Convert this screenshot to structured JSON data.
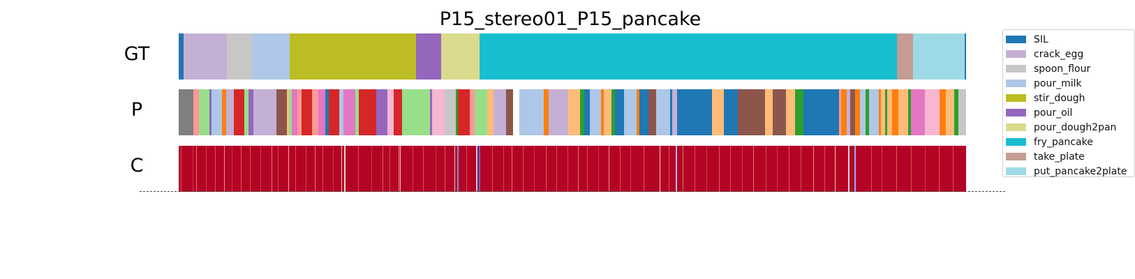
{
  "chart_data": {
    "type": "segmentation-timeline",
    "title": "P15_stereo01_P15_pancake",
    "rows": [
      "GT",
      "P",
      "C"
    ],
    "total_frames": 1000,
    "classes": [
      {
        "name": "SIL",
        "color": "#1f77b4"
      },
      {
        "name": "crack_egg",
        "color": "#c5b0d5"
      },
      {
        "name": "spoon_flour",
        "color": "#c7c7c7"
      },
      {
        "name": "pour_milk",
        "color": "#aec7e8"
      },
      {
        "name": "stir_dough",
        "color": "#bcbd22"
      },
      {
        "name": "pour_oil",
        "color": "#9467bd"
      },
      {
        "name": "pour_dough2pan",
        "color": "#dbdb8d"
      },
      {
        "name": "fry_pancake",
        "color": "#17becf"
      },
      {
        "name": "take_plate",
        "color": "#c49c94"
      },
      {
        "name": "put_pancake2plate",
        "color": "#9edae5"
      }
    ],
    "extra_colors": {
      "gray": "#7f7f7f",
      "lightgreen": "#98df8a",
      "salmon": "#ff9896",
      "orange": "#ff7f0e",
      "lightorange": "#ffbb78",
      "red": "#d62728",
      "pink": "#e377c2",
      "lightpink": "#f7b6d2",
      "brown": "#8c564b",
      "green": "#2ca02c"
    },
    "ground_truth": [
      {
        "start": 0,
        "end": 6,
        "color": "#1f77b4"
      },
      {
        "start": 6,
        "end": 61,
        "color": "#c5b0d5"
      },
      {
        "start": 61,
        "end": 93,
        "color": "#c7c7c7"
      },
      {
        "start": 93,
        "end": 141,
        "color": "#aec7e8"
      },
      {
        "start": 141,
        "end": 301,
        "color": "#bcbd22"
      },
      {
        "start": 301,
        "end": 333,
        "color": "#9467bd"
      },
      {
        "start": 333,
        "end": 382,
        "color": "#dbdb8d"
      },
      {
        "start": 382,
        "end": 912,
        "color": "#17becf"
      },
      {
        "start": 912,
        "end": 933,
        "color": "#c49c94"
      },
      {
        "start": 933,
        "end": 998,
        "color": "#9edae5"
      },
      {
        "start": 998,
        "end": 1000,
        "color": "#1f77b4"
      }
    ],
    "prediction": [
      {
        "start": 0,
        "end": 19,
        "color": "#7f7f7f"
      },
      {
        "start": 19,
        "end": 26,
        "color": "#ff9896"
      },
      {
        "start": 26,
        "end": 39,
        "color": "#98df8a"
      },
      {
        "start": 39,
        "end": 42,
        "color": "#9467bd"
      },
      {
        "start": 42,
        "end": 55,
        "color": "#aec7e8"
      },
      {
        "start": 55,
        "end": 60,
        "color": "#ff7f0e"
      },
      {
        "start": 60,
        "end": 70,
        "color": "#c5b0d5"
      },
      {
        "start": 70,
        "end": 83,
        "color": "#d62728"
      },
      {
        "start": 83,
        "end": 89,
        "color": "#98df8a"
      },
      {
        "start": 89,
        "end": 95,
        "color": "#9467bd"
      },
      {
        "start": 95,
        "end": 124,
        "color": "#c5b0d5"
      },
      {
        "start": 124,
        "end": 137,
        "color": "#8c564b"
      },
      {
        "start": 137,
        "end": 140,
        "color": "#ffbb78"
      },
      {
        "start": 140,
        "end": 144,
        "color": "#98df8a"
      },
      {
        "start": 144,
        "end": 151,
        "color": "#e377c2"
      },
      {
        "start": 151,
        "end": 156,
        "color": "#ff9896"
      },
      {
        "start": 156,
        "end": 169,
        "color": "#d62728"
      },
      {
        "start": 169,
        "end": 177,
        "color": "#ff9896"
      },
      {
        "start": 177,
        "end": 186,
        "color": "#e377c2"
      },
      {
        "start": 186,
        "end": 191,
        "color": "#1f77b4"
      },
      {
        "start": 191,
        "end": 204,
        "color": "#d62728"
      },
      {
        "start": 204,
        "end": 209,
        "color": "#aec7e8"
      },
      {
        "start": 209,
        "end": 224,
        "color": "#e377c2"
      },
      {
        "start": 224,
        "end": 229,
        "color": "#98df8a"
      },
      {
        "start": 229,
        "end": 251,
        "color": "#d62728"
      },
      {
        "start": 251,
        "end": 265,
        "color": "#9467bd"
      },
      {
        "start": 265,
        "end": 273,
        "color": "#f7b6d2"
      },
      {
        "start": 273,
        "end": 284,
        "color": "#d62728"
      },
      {
        "start": 284,
        "end": 292,
        "color": "#98df8a"
      },
      {
        "start": 292,
        "end": 319,
        "color": "#98df8a"
      },
      {
        "start": 319,
        "end": 322,
        "color": "#9467bd"
      },
      {
        "start": 322,
        "end": 338,
        "color": "#f7b6d2"
      },
      {
        "start": 338,
        "end": 352,
        "color": "#c7c7c7"
      },
      {
        "start": 352,
        "end": 355,
        "color": "#2ca02c"
      },
      {
        "start": 355,
        "end": 370,
        "color": "#d62728"
      },
      {
        "start": 370,
        "end": 376,
        "color": "#ff9896"
      },
      {
        "start": 376,
        "end": 392,
        "color": "#98df8a"
      },
      {
        "start": 392,
        "end": 400,
        "color": "#ffbb78"
      },
      {
        "start": 400,
        "end": 416,
        "color": "#c5b0d5"
      },
      {
        "start": 416,
        "end": 425,
        "color": "#8c564b"
      },
      {
        "start": 425,
        "end": 433,
        "color": "#ffffff"
      },
      {
        "start": 433,
        "end": 464,
        "color": "#aec7e8"
      },
      {
        "start": 464,
        "end": 470,
        "color": "#ff7f0e"
      },
      {
        "start": 470,
        "end": 495,
        "color": "#c5b0d5"
      },
      {
        "start": 495,
        "end": 510,
        "color": "#ffbb78"
      },
      {
        "start": 510,
        "end": 515,
        "color": "#2ca02c"
      },
      {
        "start": 515,
        "end": 522,
        "color": "#1f77b4"
      },
      {
        "start": 522,
        "end": 536,
        "color": "#aec7e8"
      },
      {
        "start": 536,
        "end": 540,
        "color": "#ff7f0e"
      },
      {
        "start": 540,
        "end": 550,
        "color": "#ffbb78"
      },
      {
        "start": 550,
        "end": 554,
        "color": "#2ca02c"
      },
      {
        "start": 554,
        "end": 566,
        "color": "#1f77b4"
      },
      {
        "start": 566,
        "end": 582,
        "color": "#aec7e8"
      },
      {
        "start": 582,
        "end": 585,
        "color": "#ff7f0e"
      },
      {
        "start": 585,
        "end": 597,
        "color": "#1f77b4"
      },
      {
        "start": 597,
        "end": 606,
        "color": "#8c564b"
      },
      {
        "start": 606,
        "end": 624,
        "color": "#aec7e8"
      },
      {
        "start": 624,
        "end": 627,
        "color": "#1f77b4"
      },
      {
        "start": 627,
        "end": 633,
        "color": "#c5b0d5"
      },
      {
        "start": 633,
        "end": 677,
        "color": "#1f77b4"
      },
      {
        "start": 677,
        "end": 692,
        "color": "#ffbb78"
      },
      {
        "start": 692,
        "end": 710,
        "color": "#1f77b4"
      },
      {
        "start": 710,
        "end": 745,
        "color": "#8c564b"
      },
      {
        "start": 745,
        "end": 754,
        "color": "#ffbb78"
      },
      {
        "start": 754,
        "end": 771,
        "color": "#8c564b"
      },
      {
        "start": 771,
        "end": 783,
        "color": "#ffbb78"
      },
      {
        "start": 783,
        "end": 793,
        "color": "#2ca02c"
      },
      {
        "start": 793,
        "end": 839,
        "color": "#1f77b4"
      },
      {
        "start": 839,
        "end": 841,
        "color": "#ff9896"
      },
      {
        "start": 841,
        "end": 848,
        "color": "#ff7f0e"
      },
      {
        "start": 848,
        "end": 853,
        "color": "#c5b0d5"
      },
      {
        "start": 853,
        "end": 859,
        "color": "#8c564b"
      },
      {
        "start": 859,
        "end": 865,
        "color": "#ff7f0e"
      },
      {
        "start": 865,
        "end": 872,
        "color": "#aec7e8"
      },
      {
        "start": 872,
        "end": 877,
        "color": "#2ca02c"
      },
      {
        "start": 877,
        "end": 889,
        "color": "#aec7e8"
      },
      {
        "start": 889,
        "end": 892,
        "color": "#ff7f0e"
      },
      {
        "start": 892,
        "end": 897,
        "color": "#ffbb78"
      },
      {
        "start": 897,
        "end": 900,
        "color": "#2ca02c"
      },
      {
        "start": 900,
        "end": 906,
        "color": "#ffbb78"
      },
      {
        "start": 906,
        "end": 914,
        "color": "#ff7f0e"
      },
      {
        "start": 914,
        "end": 926,
        "color": "#ffbb78"
      },
      {
        "start": 926,
        "end": 930,
        "color": "#2ca02c"
      },
      {
        "start": 930,
        "end": 948,
        "color": "#e377c2"
      },
      {
        "start": 948,
        "end": 966,
        "color": "#f7b6d2"
      },
      {
        "start": 966,
        "end": 974,
        "color": "#ff7f0e"
      },
      {
        "start": 974,
        "end": 985,
        "color": "#ffbb78"
      },
      {
        "start": 985,
        "end": 990,
        "color": "#2ca02c"
      },
      {
        "start": 990,
        "end": 1000,
        "color": "#c7c7c7"
      }
    ],
    "confidence": {
      "colormap": "coolwarm",
      "base_color": "#b40426",
      "values": [
        {
          "pos": 3,
          "v": 0.3
        },
        {
          "pos": 18,
          "v": 0.2
        },
        {
          "pos": 22,
          "v": 0.4
        },
        {
          "pos": 35,
          "v": 0.25
        },
        {
          "pos": 46,
          "v": 0.3
        },
        {
          "pos": 58,
          "v": 0.45
        },
        {
          "pos": 67,
          "v": 0.2
        },
        {
          "pos": 79,
          "v": 0.35
        },
        {
          "pos": 90,
          "v": 0.3
        },
        {
          "pos": 104,
          "v": 0.2
        },
        {
          "pos": 118,
          "v": 0.4
        },
        {
          "pos": 126,
          "v": 0.25
        },
        {
          "pos": 139,
          "v": 0.5
        },
        {
          "pos": 148,
          "v": 0.3
        },
        {
          "pos": 161,
          "v": 0.25
        },
        {
          "pos": 173,
          "v": 0.4
        },
        {
          "pos": 183,
          "v": 0.3
        },
        {
          "pos": 196,
          "v": 0.2
        },
        {
          "pos": 207,
          "v": 0.55
        },
        {
          "pos": 210,
          "v": 0.7
        },
        {
          "pos": 228,
          "v": 0.3
        },
        {
          "pos": 245,
          "v": 0.2
        },
        {
          "pos": 259,
          "v": 0.35
        },
        {
          "pos": 268,
          "v": 0.3
        },
        {
          "pos": 279,
          "v": 0.45
        },
        {
          "pos": 281,
          "v": 0.6
        },
        {
          "pos": 297,
          "v": 0.25
        },
        {
          "pos": 310,
          "v": 0.3
        },
        {
          "pos": 326,
          "v": 0.2
        },
        {
          "pos": 338,
          "v": 0.35
        },
        {
          "pos": 350,
          "v": 0.55
        },
        {
          "pos": 354,
          "v": 0.9
        },
        {
          "pos": 365,
          "v": 0.3
        },
        {
          "pos": 378,
          "v": 0.75
        },
        {
          "pos": 381,
          "v": 0.95
        },
        {
          "pos": 398,
          "v": 0.3
        },
        {
          "pos": 412,
          "v": 0.25
        },
        {
          "pos": 423,
          "v": 0.4
        },
        {
          "pos": 437,
          "v": 0.3
        },
        {
          "pos": 451,
          "v": 0.2
        },
        {
          "pos": 466,
          "v": 0.35
        },
        {
          "pos": 480,
          "v": 0.3
        },
        {
          "pos": 494,
          "v": 0.25
        },
        {
          "pos": 507,
          "v": 0.4
        },
        {
          "pos": 519,
          "v": 0.3
        },
        {
          "pos": 533,
          "v": 0.2
        },
        {
          "pos": 546,
          "v": 0.45
        },
        {
          "pos": 560,
          "v": 0.3
        },
        {
          "pos": 574,
          "v": 0.25
        },
        {
          "pos": 590,
          "v": 0.35
        },
        {
          "pos": 611,
          "v": 0.6
        },
        {
          "pos": 622,
          "v": 0.3
        },
        {
          "pos": 631,
          "v": 0.8
        },
        {
          "pos": 640,
          "v": 0.4
        },
        {
          "pos": 655,
          "v": 0.3
        },
        {
          "pos": 670,
          "v": 0.2
        },
        {
          "pos": 686,
          "v": 0.35
        },
        {
          "pos": 700,
          "v": 0.3
        },
        {
          "pos": 715,
          "v": 0.25
        },
        {
          "pos": 730,
          "v": 0.4
        },
        {
          "pos": 746,
          "v": 0.3
        },
        {
          "pos": 760,
          "v": 0.2
        },
        {
          "pos": 775,
          "v": 0.35
        },
        {
          "pos": 790,
          "v": 0.3
        },
        {
          "pos": 806,
          "v": 0.45
        },
        {
          "pos": 820,
          "v": 0.3
        },
        {
          "pos": 833,
          "v": 0.55
        },
        {
          "pos": 850,
          "v": 0.7
        },
        {
          "pos": 858,
          "v": 0.85
        },
        {
          "pos": 879,
          "v": 0.3
        },
        {
          "pos": 893,
          "v": 0.25
        },
        {
          "pos": 911,
          "v": 0.35
        },
        {
          "pos": 930,
          "v": 0.3
        },
        {
          "pos": 948,
          "v": 0.2
        },
        {
          "pos": 965,
          "v": 0.35
        },
        {
          "pos": 983,
          "v": 0.3
        }
      ]
    }
  }
}
